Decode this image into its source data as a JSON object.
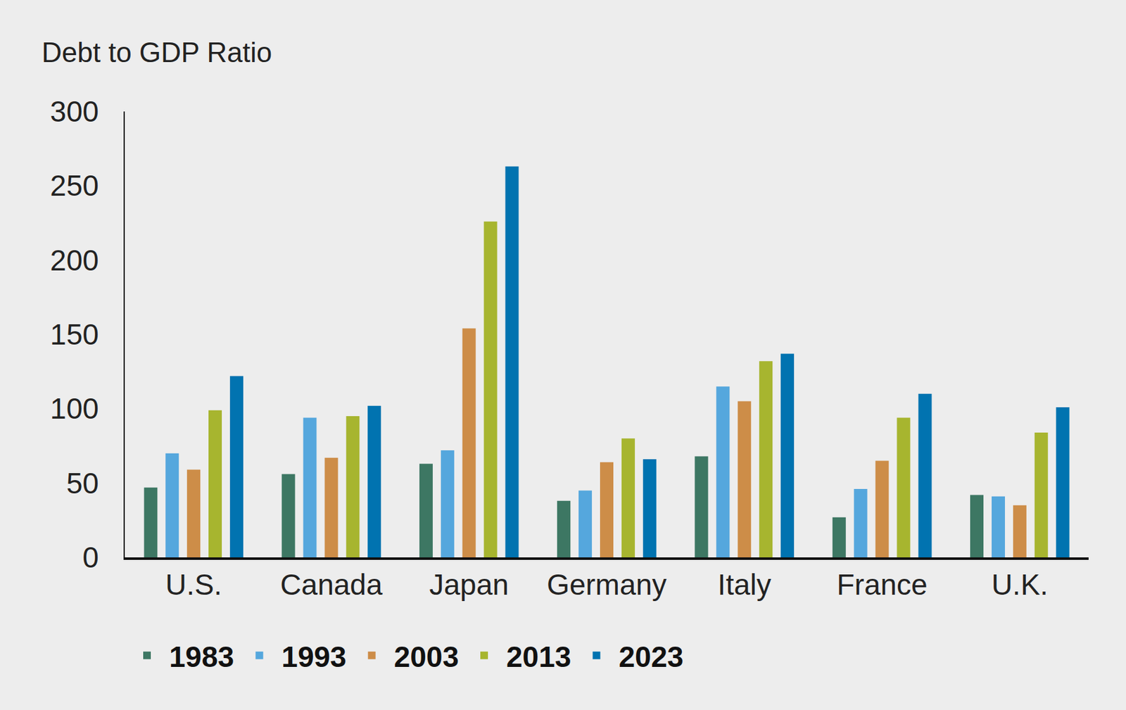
{
  "chart_data": {
    "type": "bar",
    "title": "Debt to GDP Ratio",
    "categories": [
      "U.S.",
      "Canada",
      "Japan",
      "Germany",
      "Italy",
      "France",
      "U.K."
    ],
    "series": [
      {
        "name": "1983",
        "color": "#3d7763",
        "values": [
          47,
          56,
          63,
          38,
          68,
          27,
          42
        ]
      },
      {
        "name": "1993",
        "color": "#55a7dd",
        "values": [
          70,
          94,
          72,
          45,
          115,
          46,
          41
        ]
      },
      {
        "name": "2003",
        "color": "#cd8d48",
        "values": [
          59,
          67,
          154,
          64,
          105,
          65,
          35
        ]
      },
      {
        "name": "2013",
        "color": "#a7b52f",
        "values": [
          99,
          95,
          226,
          80,
          132,
          94,
          84
        ]
      },
      {
        "name": "2023",
        "color": "#0173b0",
        "values": [
          122,
          102,
          263,
          66,
          137,
          110,
          101
        ]
      }
    ],
    "ylim": [
      0,
      300
    ],
    "yticks": [
      0,
      50,
      100,
      150,
      200,
      250,
      300
    ],
    "grid": false,
    "legend": "bottom"
  }
}
